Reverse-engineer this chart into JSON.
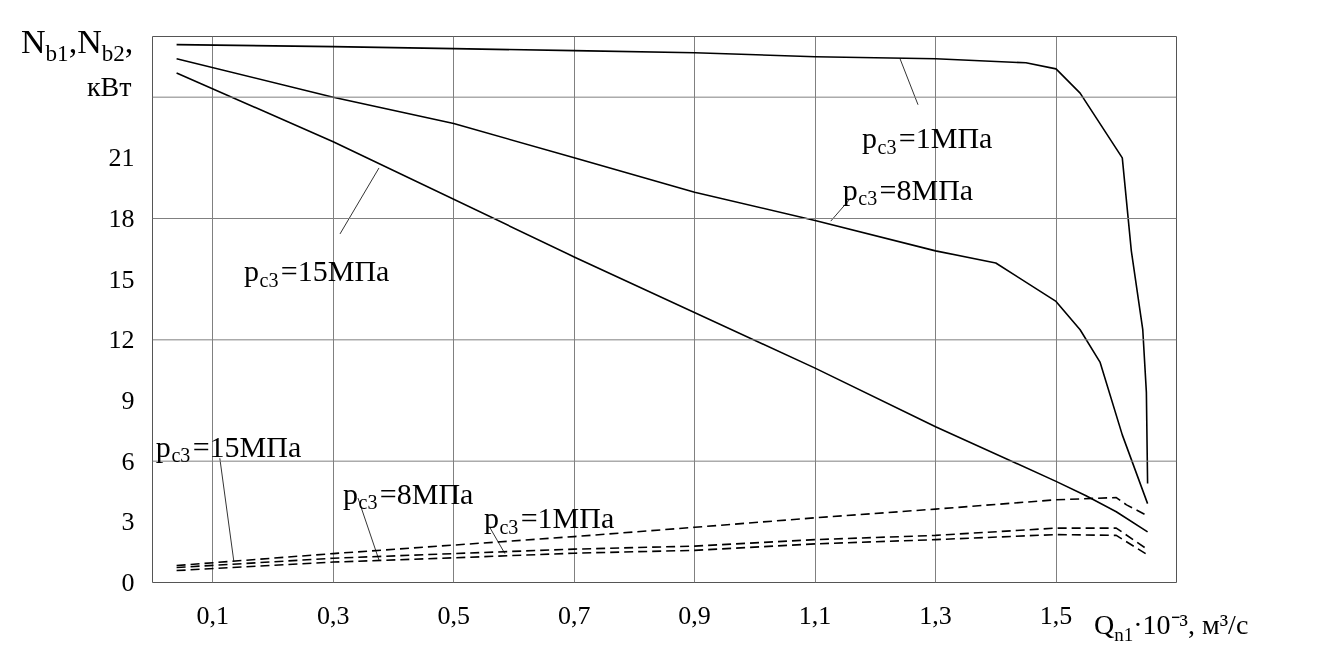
{
  "chart_data": {
    "type": "line",
    "xlabel": "Q$_{n1}$·10⁻³, м³/с",
    "ylabel": "N$_{b1}$,N$_{b2}$, кВт",
    "xlim": [
      0,
      1.7
    ],
    "ylim": [
      0,
      27
    ],
    "xticks": [
      {
        "value": 0.1,
        "label": "0,1"
      },
      {
        "value": 0.3,
        "label": "0,3"
      },
      {
        "value": 0.5,
        "label": "0,5"
      },
      {
        "value": 0.7,
        "label": "0,7"
      },
      {
        "value": 0.9,
        "label": "0,9"
      },
      {
        "value": 1.1,
        "label": "1,1"
      },
      {
        "value": 1.3,
        "label": "1,3"
      },
      {
        "value": 1.5,
        "label": "1,5"
      }
    ],
    "yticks": [
      0,
      3,
      6,
      9,
      12,
      15,
      18,
      21
    ],
    "grid": "x",
    "marker": "none",
    "ref_lines": [
      {
        "axis": "y",
        "value": 6,
        "label": null,
        "color": "#808080"
      },
      {
        "axis": "y",
        "value": 12,
        "label": null,
        "color": "#808080"
      },
      {
        "axis": "y",
        "value": 18,
        "label": null,
        "color": "#808080"
      },
      {
        "axis": "y",
        "value": 24,
        "label": null,
        "color": "#808080"
      }
    ],
    "series": [
      {
        "color": "#000000",
        "line_style": "solid",
        "x": [
          0.04,
          0.3,
          0.5,
          0.7,
          0.9,
          1.1,
          1.3,
          1.45,
          1.5,
          1.54,
          1.61,
          1.625,
          1.644,
          1.65,
          1.652
        ],
        "values": [
          26.6,
          26.5,
          26.4,
          26.3,
          26.2,
          26.0,
          25.9,
          25.7,
          25.4,
          24.2,
          21.0,
          16.4,
          12.5,
          9.4,
          4.9
        ]
      },
      {
        "color": "#000000",
        "line_style": "solid",
        "x": [
          0.04,
          0.3,
          0.5,
          0.7,
          0.9,
          1.1,
          1.3,
          1.4,
          1.5,
          1.54,
          1.573,
          1.61,
          1.652
        ],
        "values": [
          25.9,
          24.0,
          22.7,
          21.0,
          19.3,
          17.9,
          16.4,
          15.8,
          13.9,
          12.5,
          10.9,
          7.3,
          3.9
        ]
      },
      {
        "color": "#000000",
        "line_style": "solid",
        "x": [
          0.04,
          0.3,
          0.7,
          1.1,
          1.3,
          1.5,
          1.549,
          1.6,
          1.652
        ],
        "values": [
          25.2,
          21.8,
          16.1,
          10.6,
          7.7,
          5.0,
          4.3,
          3.5,
          2.5
        ]
      },
      {
        "color": "#000000",
        "line_style": "dashed",
        "x": [
          0.04,
          0.3,
          0.5,
          0.7,
          0.9,
          1.1,
          1.3,
          1.5,
          1.6,
          1.617,
          1.652
        ],
        "values": [
          0.84,
          1.43,
          1.85,
          2.27,
          2.73,
          3.2,
          3.63,
          4.09,
          4.2,
          3.84,
          3.3
        ]
      },
      {
        "color": "#000000",
        "line_style": "dashed",
        "x": [
          0.04,
          0.3,
          0.5,
          0.7,
          0.9,
          1.1,
          1.3,
          1.5,
          1.6,
          1.652
        ],
        "values": [
          0.74,
          1.2,
          1.43,
          1.65,
          1.8,
          2.12,
          2.33,
          2.69,
          2.69,
          1.63
        ]
      },
      {
        "color": "#000000",
        "line_style": "dashed",
        "x": [
          0.04,
          0.3,
          0.5,
          0.7,
          0.9,
          1.1,
          1.3,
          1.5,
          1.6,
          1.652
        ],
        "values": [
          0.59,
          1.01,
          1.22,
          1.45,
          1.59,
          1.91,
          2.12,
          2.37,
          2.33,
          1.37
        ]
      }
    ],
    "annotations": [
      {
        "text": "p$_{c3}$=1МПа",
        "x": 1.241,
        "y": 25.9
      },
      {
        "text": "p$_{c3}$=8МПа",
        "x": 1.126,
        "y": 17.87
      },
      {
        "text": "p$_{c3}$=15МПа",
        "x": 0.376,
        "y": 20.5
      },
      {
        "text": "p$_{c3}$=15МПа",
        "x": 0.135,
        "y": 1.05
      },
      {
        "text": "p$_{c3}$=8МПа",
        "x": 0.376,
        "y": 1.11
      },
      {
        "text": "p$_{c3}$=1МПа",
        "x": 0.585,
        "y": 1.43
      }
    ]
  }
}
